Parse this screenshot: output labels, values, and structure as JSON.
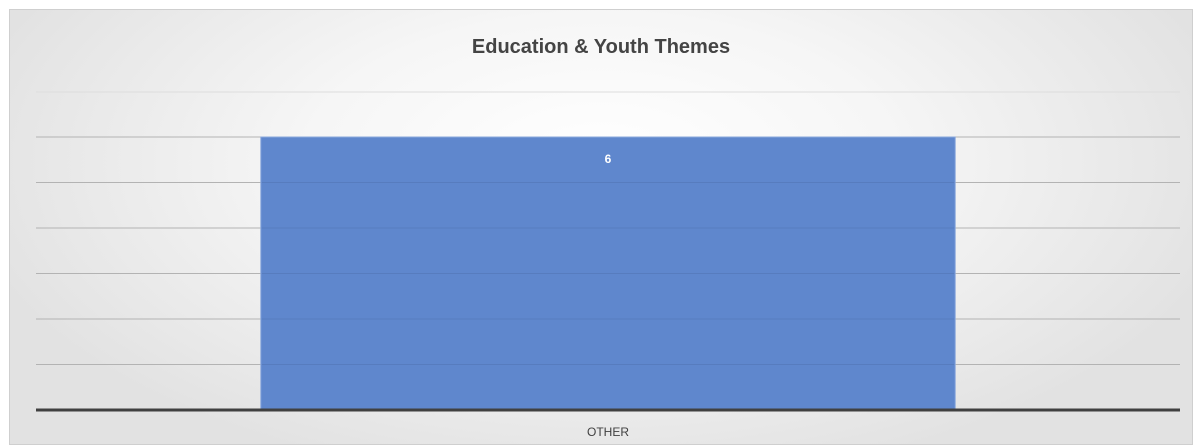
{
  "chart_data": {
    "type": "bar",
    "title": "Education & Youth Themes",
    "categories": [
      "OTHER"
    ],
    "values": [
      6
    ],
    "data_labels": [
      "6"
    ],
    "ylim": [
      0,
      6.5
    ],
    "y_tick_step": 1,
    "grid": true,
    "legend": "none",
    "xlabel": "",
    "ylabel": "",
    "colors": {
      "bar": "#5f87cd",
      "bar_edge": "#8aa8dc",
      "gridline": "#b3b3b3",
      "axis": "#404040",
      "label": "#ffffff",
      "tick_label": "#404040"
    }
  }
}
